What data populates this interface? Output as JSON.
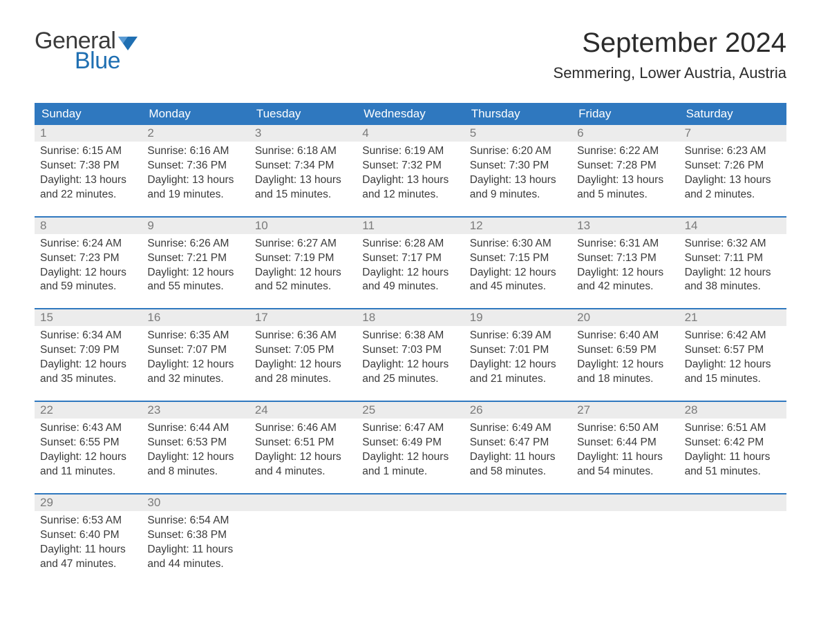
{
  "brand": {
    "word1": "General",
    "word2": "Blue",
    "text_color_general": "#3b3b3b",
    "text_color_blue": "#1f6fb2",
    "flag_color": "#1f6fb2"
  },
  "title": "September 2024",
  "location": "Semmering, Lower Austria, Austria",
  "colors": {
    "header_bg": "#2f78bf",
    "header_text": "#ffffff",
    "daynum_bg": "#ececec",
    "daynum_text": "#7a7a7a",
    "body_text": "#3a3a3a",
    "week_border": "#2f78bf",
    "page_bg": "#ffffff"
  },
  "typography": {
    "title_fontsize": 40,
    "location_fontsize": 22,
    "header_fontsize": 17,
    "daynum_fontsize": 17,
    "content_fontsize": 15.5,
    "font_family": "Arial"
  },
  "layout": {
    "columns": 7,
    "rows": 5,
    "first_day_index": 0
  },
  "weekdays": [
    "Sunday",
    "Monday",
    "Tuesday",
    "Wednesday",
    "Thursday",
    "Friday",
    "Saturday"
  ],
  "days": [
    {
      "n": 1,
      "sunrise": "6:15 AM",
      "sunset": "7:38 PM",
      "daylight": "13 hours and 22 minutes."
    },
    {
      "n": 2,
      "sunrise": "6:16 AM",
      "sunset": "7:36 PM",
      "daylight": "13 hours and 19 minutes."
    },
    {
      "n": 3,
      "sunrise": "6:18 AM",
      "sunset": "7:34 PM",
      "daylight": "13 hours and 15 minutes."
    },
    {
      "n": 4,
      "sunrise": "6:19 AM",
      "sunset": "7:32 PM",
      "daylight": "13 hours and 12 minutes."
    },
    {
      "n": 5,
      "sunrise": "6:20 AM",
      "sunset": "7:30 PM",
      "daylight": "13 hours and 9 minutes."
    },
    {
      "n": 6,
      "sunrise": "6:22 AM",
      "sunset": "7:28 PM",
      "daylight": "13 hours and 5 minutes."
    },
    {
      "n": 7,
      "sunrise": "6:23 AM",
      "sunset": "7:26 PM",
      "daylight": "13 hours and 2 minutes."
    },
    {
      "n": 8,
      "sunrise": "6:24 AM",
      "sunset": "7:23 PM",
      "daylight": "12 hours and 59 minutes."
    },
    {
      "n": 9,
      "sunrise": "6:26 AM",
      "sunset": "7:21 PM",
      "daylight": "12 hours and 55 minutes."
    },
    {
      "n": 10,
      "sunrise": "6:27 AM",
      "sunset": "7:19 PM",
      "daylight": "12 hours and 52 minutes."
    },
    {
      "n": 11,
      "sunrise": "6:28 AM",
      "sunset": "7:17 PM",
      "daylight": "12 hours and 49 minutes."
    },
    {
      "n": 12,
      "sunrise": "6:30 AM",
      "sunset": "7:15 PM",
      "daylight": "12 hours and 45 minutes."
    },
    {
      "n": 13,
      "sunrise": "6:31 AM",
      "sunset": "7:13 PM",
      "daylight": "12 hours and 42 minutes."
    },
    {
      "n": 14,
      "sunrise": "6:32 AM",
      "sunset": "7:11 PM",
      "daylight": "12 hours and 38 minutes."
    },
    {
      "n": 15,
      "sunrise": "6:34 AM",
      "sunset": "7:09 PM",
      "daylight": "12 hours and 35 minutes."
    },
    {
      "n": 16,
      "sunrise": "6:35 AM",
      "sunset": "7:07 PM",
      "daylight": "12 hours and 32 minutes."
    },
    {
      "n": 17,
      "sunrise": "6:36 AM",
      "sunset": "7:05 PM",
      "daylight": "12 hours and 28 minutes."
    },
    {
      "n": 18,
      "sunrise": "6:38 AM",
      "sunset": "7:03 PM",
      "daylight": "12 hours and 25 minutes."
    },
    {
      "n": 19,
      "sunrise": "6:39 AM",
      "sunset": "7:01 PM",
      "daylight": "12 hours and 21 minutes."
    },
    {
      "n": 20,
      "sunrise": "6:40 AM",
      "sunset": "6:59 PM",
      "daylight": "12 hours and 18 minutes."
    },
    {
      "n": 21,
      "sunrise": "6:42 AM",
      "sunset": "6:57 PM",
      "daylight": "12 hours and 15 minutes."
    },
    {
      "n": 22,
      "sunrise": "6:43 AM",
      "sunset": "6:55 PM",
      "daylight": "12 hours and 11 minutes."
    },
    {
      "n": 23,
      "sunrise": "6:44 AM",
      "sunset": "6:53 PM",
      "daylight": "12 hours and 8 minutes."
    },
    {
      "n": 24,
      "sunrise": "6:46 AM",
      "sunset": "6:51 PM",
      "daylight": "12 hours and 4 minutes."
    },
    {
      "n": 25,
      "sunrise": "6:47 AM",
      "sunset": "6:49 PM",
      "daylight": "12 hours and 1 minute."
    },
    {
      "n": 26,
      "sunrise": "6:49 AM",
      "sunset": "6:47 PM",
      "daylight": "11 hours and 58 minutes."
    },
    {
      "n": 27,
      "sunrise": "6:50 AM",
      "sunset": "6:44 PM",
      "daylight": "11 hours and 54 minutes."
    },
    {
      "n": 28,
      "sunrise": "6:51 AM",
      "sunset": "6:42 PM",
      "daylight": "11 hours and 51 minutes."
    },
    {
      "n": 29,
      "sunrise": "6:53 AM",
      "sunset": "6:40 PM",
      "daylight": "11 hours and 47 minutes."
    },
    {
      "n": 30,
      "sunrise": "6:54 AM",
      "sunset": "6:38 PM",
      "daylight": "11 hours and 44 minutes."
    }
  ],
  "labels": {
    "sunrise_prefix": "Sunrise: ",
    "sunset_prefix": "Sunset: ",
    "daylight_prefix": "Daylight: "
  }
}
